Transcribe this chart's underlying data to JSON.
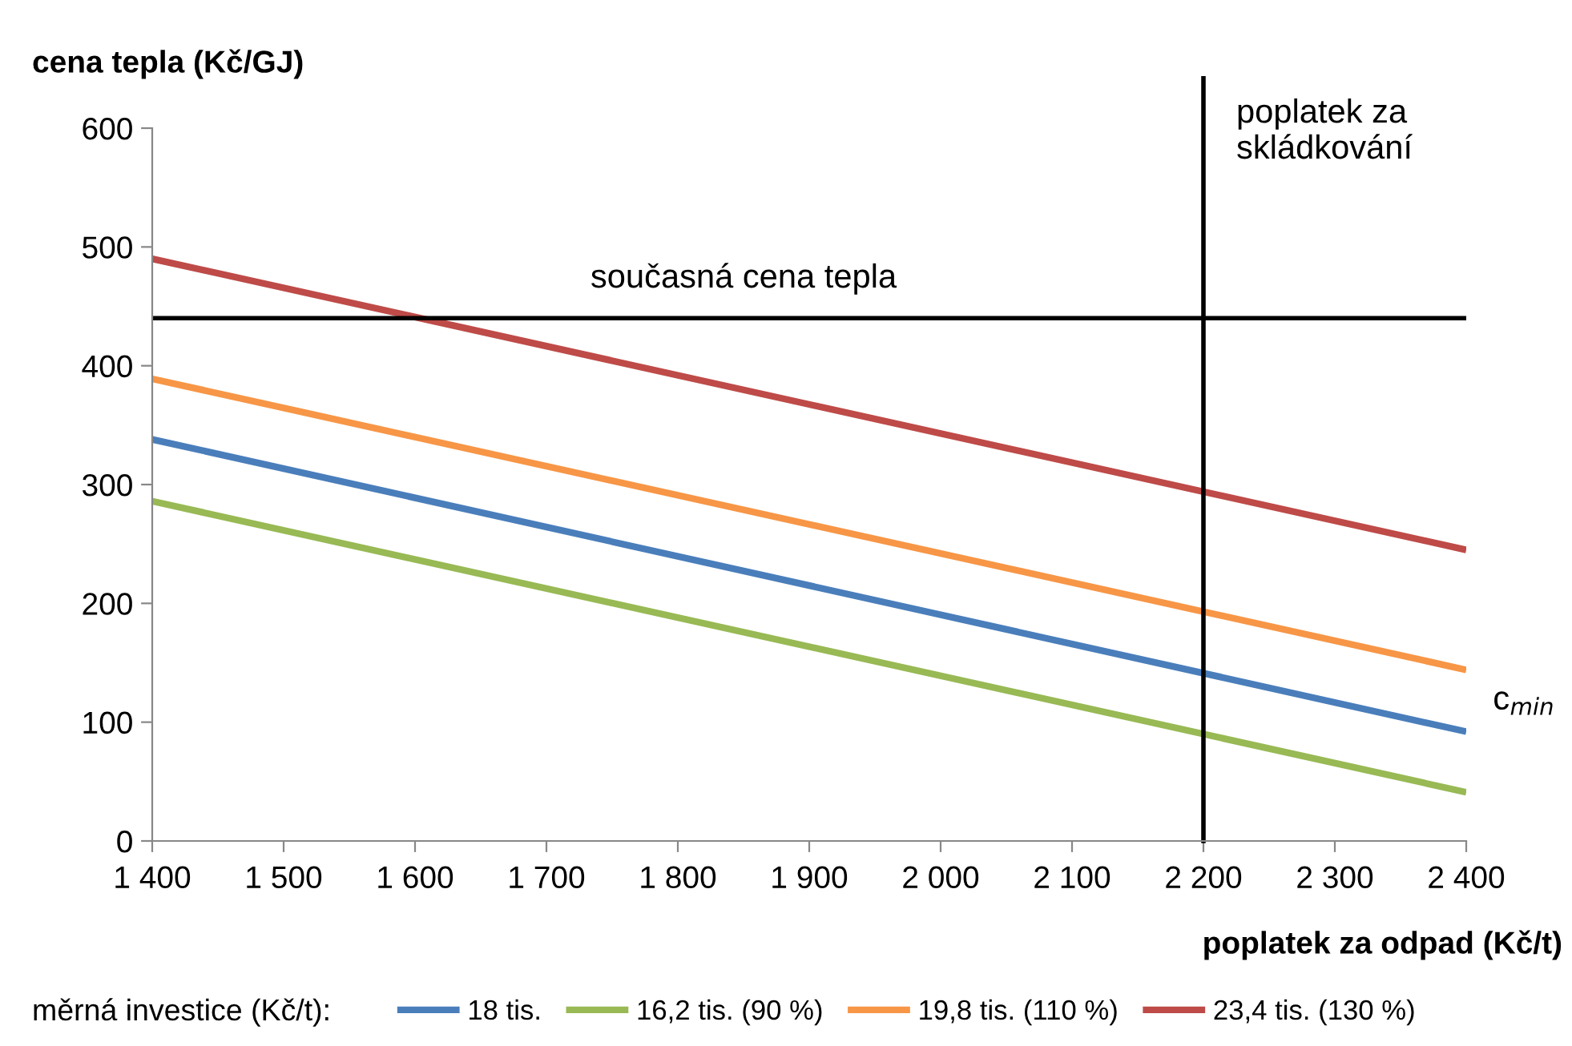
{
  "chart_data": {
    "type": "line",
    "ylabel": "cena tepla (Kč/GJ)",
    "xlabel": "poplatek za odpad (Kč/t)",
    "legend_title": "měrná investice (Kč/t):",
    "x": [
      1400,
      2400
    ],
    "series": [
      {
        "name": "18 tis.",
        "color": "#4a7ebb",
        "values": [
          338,
          92
        ]
      },
      {
        "name": "16,2 tis. (90 %)",
        "color": "#98b954",
        "values": [
          286,
          41
        ]
      },
      {
        "name": "19,8 tis. (110 %)",
        "color": "#f79646",
        "values": [
          389,
          144
        ]
      },
      {
        "name": "23,4 tis. (130 %)",
        "color": "#be4b48",
        "values": [
          490,
          245
        ]
      }
    ],
    "xlim": [
      1400,
      2400
    ],
    "ylim": [
      0,
      600
    ],
    "xticks": [
      {
        "value": 1400,
        "label": "1 400"
      },
      {
        "value": 1500,
        "label": "1 500"
      },
      {
        "value": 1600,
        "label": "1 600"
      },
      {
        "value": 1700,
        "label": "1 700"
      },
      {
        "value": 1800,
        "label": "1 800"
      },
      {
        "value": 1900,
        "label": "1 900"
      },
      {
        "value": 2000,
        "label": "2 000"
      },
      {
        "value": 2100,
        "label": "2 100"
      },
      {
        "value": 2200,
        "label": "2 200"
      },
      {
        "value": 2300,
        "label": "2 300"
      },
      {
        "value": 2400,
        "label": "2 400"
      }
    ],
    "yticks": [
      0,
      100,
      200,
      300,
      400,
      500,
      600
    ],
    "ref_lines": [
      {
        "axis": "y",
        "value": 440,
        "label": "současná cena tepla",
        "color": "#000000"
      },
      {
        "axis": "x",
        "value": 2200,
        "label": "poplatek za\nskládkování",
        "color": "#000000"
      }
    ],
    "annotations": [
      {
        "text": "c$_{min}$",
        "x": 2400,
        "y": 92
      }
    ],
    "grid": false,
    "legend": "bottom",
    "marker": "none",
    "line_style": "solid"
  }
}
